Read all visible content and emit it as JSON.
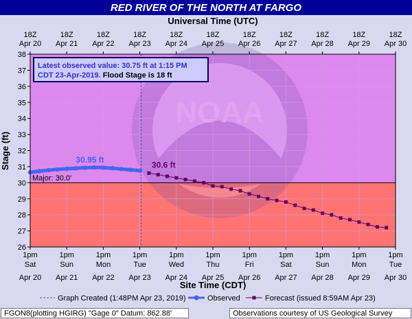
{
  "title": "RED RIVER OF THE NORTH AT FARGO",
  "top_axis_title": "Universal Time (UTC)",
  "bottom_axis_title": "Site Time (CDT)",
  "y_axis_title": "Stage (ft)",
  "top_ticks": [
    {
      "t": "18Z",
      "d": "Apr 20"
    },
    {
      "t": "18Z",
      "d": "Apr 21"
    },
    {
      "t": "18Z",
      "d": "Apr 22"
    },
    {
      "t": "18Z",
      "d": "Apr 23"
    },
    {
      "t": "18Z",
      "d": "Apr 24"
    },
    {
      "t": "18Z",
      "d": "Apr 25"
    },
    {
      "t": "18Z",
      "d": "Apr 26"
    },
    {
      "t": "18Z",
      "d": "Apr 27"
    },
    {
      "t": "18Z",
      "d": "Apr 28"
    },
    {
      "t": "18Z",
      "d": "Apr 29"
    },
    {
      "t": "18Z",
      "d": "Apr 30"
    }
  ],
  "bottom_ticks": [
    {
      "t": "1pm",
      "w": "Sat",
      "d": "Apr 20"
    },
    {
      "t": "1pm",
      "w": "Sun",
      "d": "Apr 21"
    },
    {
      "t": "1pm",
      "w": "Mon",
      "d": "Apr 22"
    },
    {
      "t": "1pm",
      "w": "Tue",
      "d": "Apr 23"
    },
    {
      "t": "1pm",
      "w": "Wed",
      "d": "Apr 24"
    },
    {
      "t": "1pm",
      "w": "Thu",
      "d": "Apr 25"
    },
    {
      "t": "1pm",
      "w": "Fri",
      "d": "Apr 26"
    },
    {
      "t": "1pm",
      "w": "Sat",
      "d": "Apr 27"
    },
    {
      "t": "1pm",
      "w": "Sun",
      "d": "Apr 28"
    },
    {
      "t": "1pm",
      "w": "Mon",
      "d": "Apr 29"
    },
    {
      "t": "1pm",
      "w": "Tue",
      "d": "Apr 30"
    }
  ],
  "info_box": {
    "line1": "Latest observed value: 30.75 ft at 1:15 PM",
    "line2_a": "CDT 23-Apr-2019.",
    "line2_b": " Flood Stage is 18 ft"
  },
  "watermark_text": "NOAA",
  "major_label": "Major: 30.0'",
  "peak_obs_label": "30.95 ft",
  "peak_fcst_label": "30.6 ft",
  "legend": {
    "created": "Graph Created (1:48PM Apr 23, 2019)",
    "observed": "Observed",
    "forecast": "Forecast (issued 8:59AM Apr 23)"
  },
  "footer": {
    "left": "FGON8(plotting HGIRG) \"Gage 0\" Datum:  862.88'",
    "right": "Observations courtesy of US Geological Survey"
  },
  "colors": {
    "title_bg": "#000099",
    "title_fg": "#ffffff",
    "major_bg": "#ff7373",
    "above_major_bg": "#dd88ee",
    "observed": "#4466ee",
    "forecast": "#660066",
    "created_line": "#5555aa"
  },
  "chart_data": {
    "type": "line",
    "x_axis": "Site Time (CDT)",
    "x_range": [
      "2019-04-20T13:00",
      "2019-04-30T13:00"
    ],
    "ylim": [
      26,
      38
    ],
    "y_ticks": [
      26,
      27,
      28,
      29,
      30,
      31,
      32,
      33,
      34,
      35,
      36,
      37,
      38
    ],
    "grid": true,
    "major_flood_stage": 30.0,
    "graph_created": "2019-04-23T13:48",
    "series": [
      {
        "name": "Observed",
        "points": [
          [
            "2019-04-20T13:00",
            30.65
          ],
          [
            "2019-04-20T19:00",
            30.72
          ],
          [
            "2019-04-21T01:00",
            30.78
          ],
          [
            "2019-04-21T07:00",
            30.83
          ],
          [
            "2019-04-21T13:00",
            30.87
          ],
          [
            "2019-04-21T19:00",
            30.9
          ],
          [
            "2019-04-22T01:00",
            30.93
          ],
          [
            "2019-04-22T07:00",
            30.95
          ],
          [
            "2019-04-22T13:00",
            30.94
          ],
          [
            "2019-04-22T19:00",
            30.9
          ],
          [
            "2019-04-23T01:00",
            30.85
          ],
          [
            "2019-04-23T07:00",
            30.8
          ],
          [
            "2019-04-23T13:15",
            30.75
          ]
        ]
      },
      {
        "name": "Forecast",
        "points": [
          [
            "2019-04-23T19:00",
            30.6
          ],
          [
            "2019-04-24T01:00",
            30.5
          ],
          [
            "2019-04-24T07:00",
            30.4
          ],
          [
            "2019-04-24T13:00",
            30.3
          ],
          [
            "2019-04-24T19:00",
            30.2
          ],
          [
            "2019-04-25T01:00",
            30.1
          ],
          [
            "2019-04-25T07:00",
            30.0
          ],
          [
            "2019-04-25T13:00",
            29.8
          ],
          [
            "2019-04-25T19:00",
            29.75
          ],
          [
            "2019-04-26T01:00",
            29.6
          ],
          [
            "2019-04-26T07:00",
            29.5
          ],
          [
            "2019-04-26T13:00",
            29.3
          ],
          [
            "2019-04-26T19:00",
            29.15
          ],
          [
            "2019-04-27T01:00",
            29.0
          ],
          [
            "2019-04-27T07:00",
            28.9
          ],
          [
            "2019-04-27T13:00",
            28.8
          ],
          [
            "2019-04-27T19:00",
            28.6
          ],
          [
            "2019-04-28T01:00",
            28.4
          ],
          [
            "2019-04-28T07:00",
            28.3
          ],
          [
            "2019-04-28T13:00",
            28.1
          ],
          [
            "2019-04-28T19:00",
            28.0
          ],
          [
            "2019-04-29T01:00",
            27.8
          ],
          [
            "2019-04-29T07:00",
            27.7
          ],
          [
            "2019-04-29T13:00",
            27.55
          ],
          [
            "2019-04-29T19:00",
            27.4
          ],
          [
            "2019-04-30T01:00",
            27.25
          ],
          [
            "2019-04-30T07:00",
            27.2
          ]
        ]
      }
    ]
  }
}
